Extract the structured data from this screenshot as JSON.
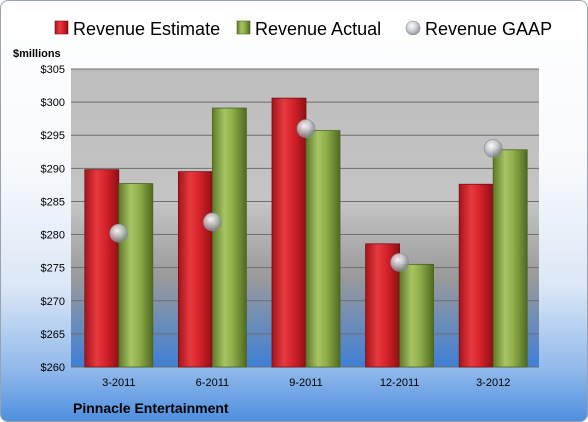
{
  "chart_data": {
    "type": "bar",
    "unit_label": "$millions",
    "footer": "Pinnacle Entertainment",
    "categories": [
      "3-2011",
      "6-2011",
      "9-2011",
      "12-2011",
      "3-2012"
    ],
    "series": [
      {
        "name": "Revenue Estimate",
        "kind": "bar",
        "color": "#d8242c",
        "values": [
          289.8,
          289.5,
          300.6,
          278.6,
          287.6
        ]
      },
      {
        "name": "Revenue Actual",
        "kind": "bar",
        "color": "#8fae4a",
        "values": [
          287.7,
          299.1,
          295.7,
          275.5,
          292.8
        ]
      },
      {
        "name": "Revenue GAAP",
        "kind": "marker",
        "color": "#b9bcc2",
        "values": [
          280.2,
          281.9,
          296.0,
          275.8,
          293.0
        ]
      }
    ],
    "ylim": [
      260,
      305
    ],
    "yticks": [
      260,
      265,
      270,
      275,
      280,
      285,
      290,
      295,
      300,
      305
    ],
    "ytick_labels": [
      "$260",
      "$265",
      "$270",
      "$275",
      "$280",
      "$285",
      "$290",
      "$295",
      "$300",
      "$305"
    ],
    "grid": true,
    "legend_position": "top"
  }
}
